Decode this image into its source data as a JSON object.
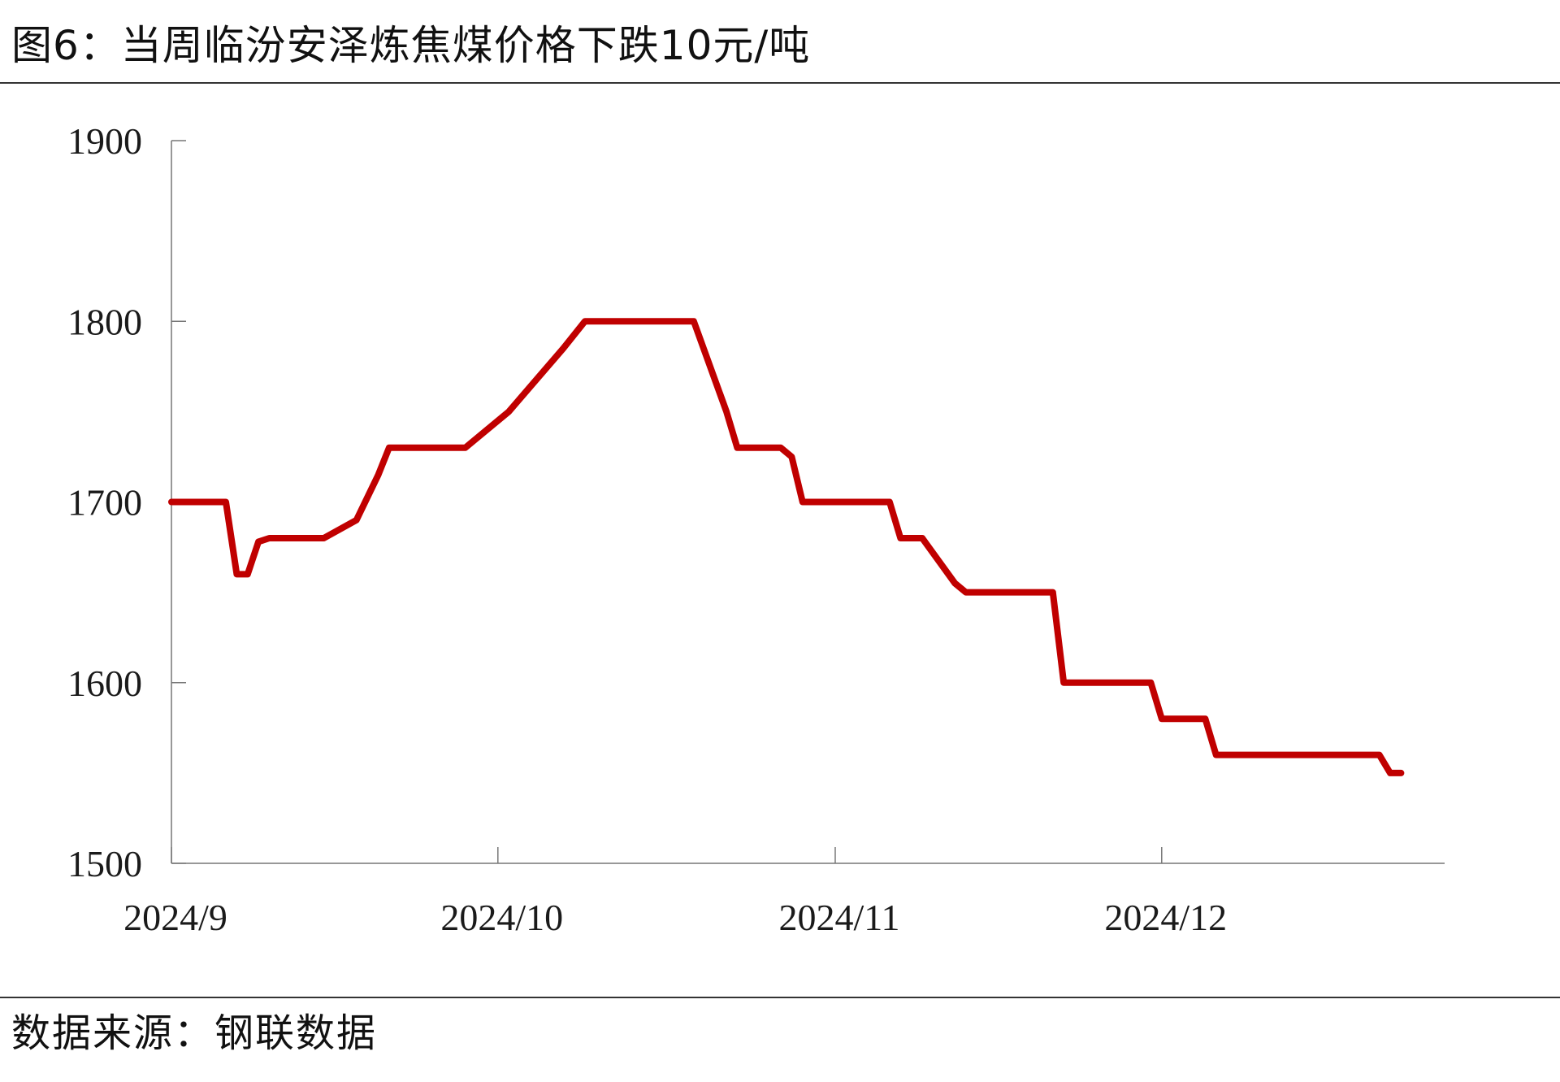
{
  "title": "图6：当周临汾安泽炼焦煤价格下跌10元/吨",
  "source": "数据来源：钢联数据",
  "chart_data": {
    "type": "line",
    "title": "图6：当周临汾安泽炼焦煤价格下跌10元/吨",
    "xlabel": "",
    "ylabel": "",
    "ylim": [
      1500,
      1900
    ],
    "yticks": [
      1500,
      1600,
      1700,
      1800,
      1900
    ],
    "xlim": [
      "2024-09-01",
      "2024-12-27"
    ],
    "xticks": [
      {
        "date": "2024-09-01",
        "label": "2024/9"
      },
      {
        "date": "2024-10-01",
        "label": "2024/10"
      },
      {
        "date": "2024-11-01",
        "label": "2024/11"
      },
      {
        "date": "2024-12-01",
        "label": "2024/12"
      }
    ],
    "grid": false,
    "legend": "none",
    "series": [
      {
        "color": "#c00000",
        "points": [
          {
            "x": "2024-09-01",
            "y": 1700
          },
          {
            "x": "2024-09-06",
            "y": 1700
          },
          {
            "x": "2024-09-07",
            "y": 1660
          },
          {
            "x": "2024-09-08",
            "y": 1660
          },
          {
            "x": "2024-09-09",
            "y": 1678
          },
          {
            "x": "2024-09-10",
            "y": 1680
          },
          {
            "x": "2024-09-13",
            "y": 1680
          },
          {
            "x": "2024-09-15",
            "y": 1680
          },
          {
            "x": "2024-09-18",
            "y": 1690
          },
          {
            "x": "2024-09-20",
            "y": 1715
          },
          {
            "x": "2024-09-21",
            "y": 1730
          },
          {
            "x": "2024-09-28",
            "y": 1730
          },
          {
            "x": "2024-10-02",
            "y": 1750
          },
          {
            "x": "2024-10-07",
            "y": 1785
          },
          {
            "x": "2024-10-09",
            "y": 1800
          },
          {
            "x": "2024-10-19",
            "y": 1800
          },
          {
            "x": "2024-10-22",
            "y": 1750
          },
          {
            "x": "2024-10-23",
            "y": 1730
          },
          {
            "x": "2024-10-27",
            "y": 1730
          },
          {
            "x": "2024-10-28",
            "y": 1725
          },
          {
            "x": "2024-10-29",
            "y": 1700
          },
          {
            "x": "2024-11-06",
            "y": 1700
          },
          {
            "x": "2024-11-07",
            "y": 1680
          },
          {
            "x": "2024-11-09",
            "y": 1680
          },
          {
            "x": "2024-11-12",
            "y": 1655
          },
          {
            "x": "2024-11-13",
            "y": 1650
          },
          {
            "x": "2024-11-21",
            "y": 1650
          },
          {
            "x": "2024-11-22",
            "y": 1600
          },
          {
            "x": "2024-11-30",
            "y": 1600
          },
          {
            "x": "2024-12-01",
            "y": 1580
          },
          {
            "x": "2024-12-05",
            "y": 1580
          },
          {
            "x": "2024-12-06",
            "y": 1560
          },
          {
            "x": "2024-12-21",
            "y": 1560
          },
          {
            "x": "2024-12-22",
            "y": 1550
          },
          {
            "x": "2024-12-23",
            "y": 1550
          }
        ]
      }
    ]
  }
}
